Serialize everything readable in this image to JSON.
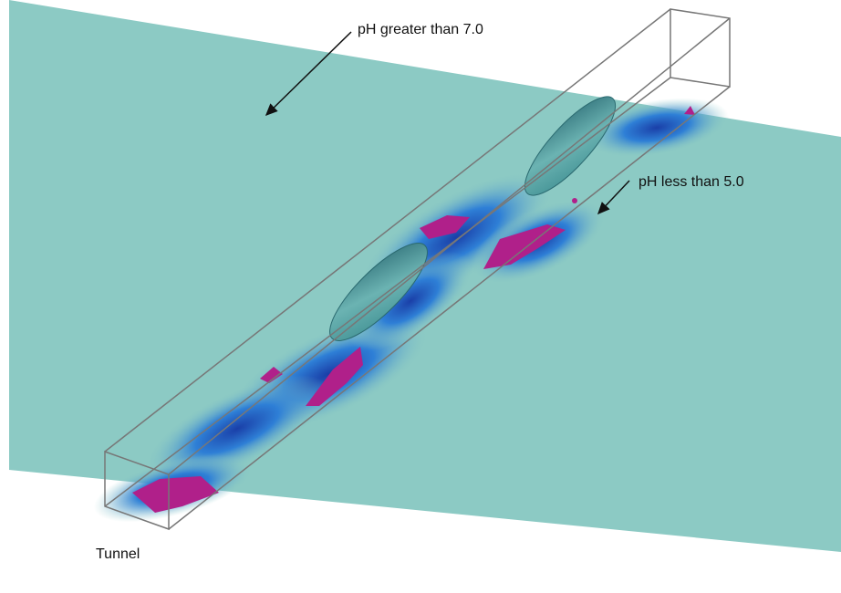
{
  "annotations": {
    "high_ph": "pH greater than 7.0",
    "low_ph": "pH less than 5.0",
    "tunnel": "Tunnel"
  }
}
